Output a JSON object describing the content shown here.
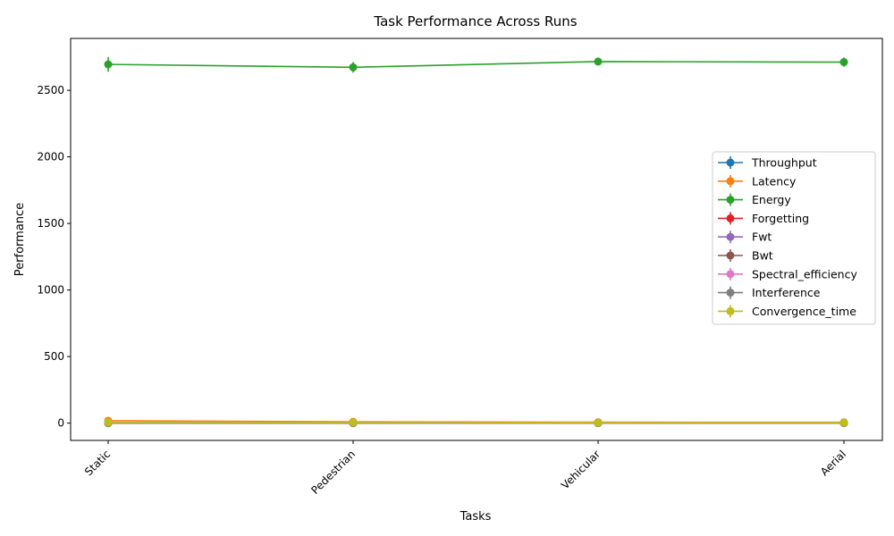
{
  "chart_data": {
    "type": "line",
    "title": "Task Performance Across Runs",
    "xlabel": "Tasks",
    "ylabel": "Performance",
    "categories": [
      "Static",
      "Pedestrian",
      "Vehicular",
      "Aerial"
    ],
    "ylim": [
      -130,
      2890
    ],
    "yticks": [
      0,
      500,
      1000,
      1500,
      2000,
      2500
    ],
    "grid": false,
    "legend_position": "center-right",
    "series": [
      {
        "name": "Throughput",
        "color": "#1f77b4",
        "values": [
          2,
          1.5,
          1.5,
          1.5
        ],
        "errors": [
          0.5,
          0.5,
          0.5,
          0.5
        ]
      },
      {
        "name": "Latency",
        "color": "#ff7f0e",
        "values": [
          18,
          10,
          7,
          6
        ],
        "errors": [
          3,
          2,
          2,
          2
        ]
      },
      {
        "name": "Energy",
        "color": "#2ca02c",
        "values": [
          2695,
          2673,
          2716,
          2712
        ],
        "errors": [
          55,
          40,
          25,
          35
        ]
      },
      {
        "name": "Forgetting",
        "color": "#d62728",
        "values": [
          0.2,
          0.2,
          0.2,
          0.2
        ],
        "errors": [
          0.05,
          0.05,
          0.05,
          0.05
        ]
      },
      {
        "name": "Fwt",
        "color": "#9467bd",
        "values": [
          0.1,
          0.1,
          0.1,
          0.1
        ],
        "errors": [
          0.05,
          0.05,
          0.05,
          0.05
        ]
      },
      {
        "name": "Bwt",
        "color": "#8c564b",
        "values": [
          -0.1,
          -0.1,
          -0.1,
          -0.1
        ],
        "errors": [
          0.05,
          0.05,
          0.05,
          0.05
        ]
      },
      {
        "name": "Spectral_efficiency",
        "color": "#e377c2",
        "values": [
          3,
          2.5,
          2,
          2
        ],
        "errors": [
          0.3,
          0.3,
          0.3,
          0.3
        ]
      },
      {
        "name": "Interference",
        "color": "#7f7f7f",
        "values": [
          1,
          1,
          1,
          1
        ],
        "errors": [
          0.2,
          0.2,
          0.2,
          0.2
        ]
      },
      {
        "name": "Convergence_time",
        "color": "#bcbd22",
        "values": [
          5,
          4,
          3,
          3
        ],
        "errors": [
          1,
          1,
          1,
          1
        ]
      }
    ]
  }
}
